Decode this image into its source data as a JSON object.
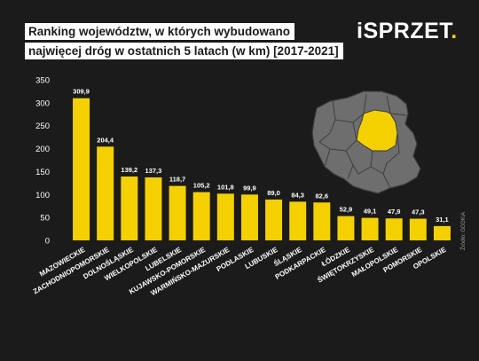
{
  "header": {
    "title_line1": "Ranking województw, w których wybudowano",
    "title_line2": "najwięcej dróg w ostatnich 5 latach (w km) [2017-2021]"
  },
  "logo": {
    "text": "iSPRZET",
    "dot": ".",
    "accent": "#f5d000"
  },
  "source": "Źródło: GDDKiA",
  "map": {
    "icon": "poland-map-icon",
    "highlight": "MAZOWIECKIE",
    "highlight_color": "#f5d000"
  },
  "chart_data": {
    "type": "bar",
    "title": "Ranking województw, w których wybudowano najwięcej dróg w ostatnich 5 latach (w km) [2017-2021]",
    "categories": [
      "MAZOWIECKIE",
      "ZACHODNIOPOMORSKIE",
      "DOLNOŚLĄSKIE",
      "WIELKOPOLSKIE",
      "LUBELSKIE",
      "KUJAWSKO-POMORSKIE",
      "WARMIŃSKO-MAZURSKIE",
      "PODLASKIE",
      "LUBUSKIE",
      "ŚLĄSKIE",
      "PODKARPACKIE",
      "ŁÓDZKIE",
      "ŚWIĘTOKRZYSKIE",
      "MAŁOPOLSKIE",
      "POMORSKIE",
      "OPOLSKIE"
    ],
    "values": [
      309.9,
      204.4,
      139.2,
      137.3,
      118.7,
      105.2,
      101.8,
      99.9,
      89.0,
      84.3,
      82.6,
      52.9,
      49.1,
      47.9,
      47.3,
      31.1
    ],
    "value_labels": [
      "309,9",
      "204,4",
      "139,2",
      "137,3",
      "118,7",
      "105,2",
      "101,8",
      "99,9",
      "89,0",
      "84,3",
      "82,6",
      "52,9",
      "49,1",
      "47,9",
      "47,3",
      "31,1"
    ],
    "yticks": [
      "0",
      "50",
      "100",
      "150",
      "200",
      "250",
      "300",
      "350"
    ],
    "ylim": [
      0,
      350
    ],
    "xlabel": "",
    "ylabel": "",
    "grid": false,
    "bar_color": "#f5d000"
  }
}
